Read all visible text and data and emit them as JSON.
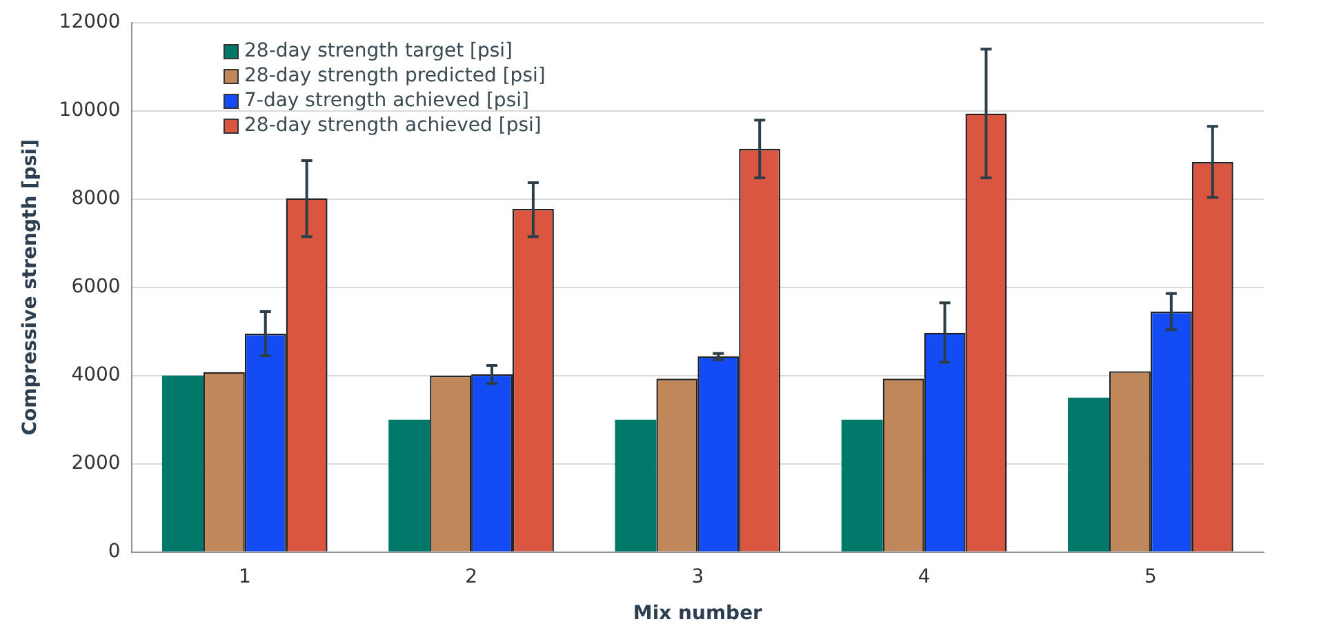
{
  "chart_data": {
    "type": "bar",
    "xlabel": "Mix number",
    "ylabel": "Compressive strength [psi]",
    "categories": [
      "1",
      "2",
      "3",
      "4",
      "5"
    ],
    "series": [
      {
        "name": "28-day strength target [psi]",
        "color": "#00796b",
        "values": [
          4000,
          3000,
          3000,
          3000,
          3500
        ]
      },
      {
        "name": "28-day strength predicted [psi]",
        "color": "#c0875a",
        "values": [
          4080,
          4000,
          3930,
          3930,
          4100
        ]
      },
      {
        "name": "7-day strength achieved [psi]",
        "color": "#134cf5",
        "values": [
          4950,
          4030,
          4440,
          4970,
          5450
        ],
        "errors": [
          [
            4450,
            5450
          ],
          [
            3820,
            4230
          ],
          [
            4360,
            4500
          ],
          [
            4300,
            5650
          ],
          [
            5040,
            5860
          ]
        ]
      },
      {
        "name": "28-day strength achieved [psi]",
        "color": "#da5640",
        "values": [
          8020,
          7780,
          9140,
          9940,
          8840
        ],
        "errors": [
          [
            7150,
            8870
          ],
          [
            7150,
            8370
          ],
          [
            8480,
            9790
          ],
          [
            8480,
            11400
          ],
          [
            8040,
            9650
          ]
        ]
      }
    ],
    "ylim": [
      0,
      12000
    ],
    "yticks": [
      0,
      2000,
      4000,
      6000,
      8000,
      10000,
      12000
    ],
    "grid": "y",
    "legend": "top left"
  }
}
